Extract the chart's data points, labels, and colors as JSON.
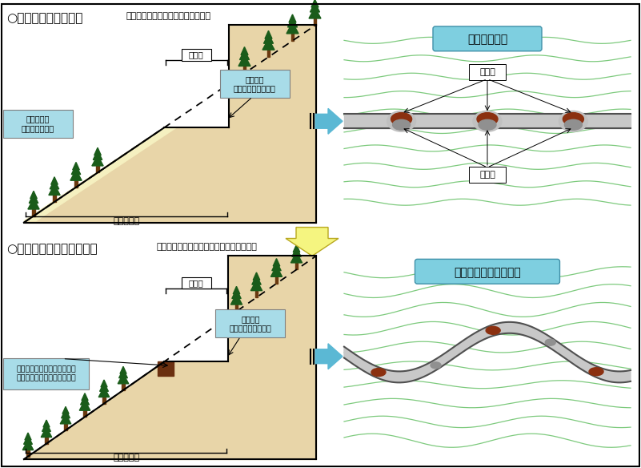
{
  "title_top": "○　これまでの作業路",
  "title_top_sub": "（土工量が大きく、雨等にも弱い）",
  "title_bottom": "○　切土高を抑えた作業路",
  "title_bottom_sub": "（土工量が少なく、安定している作業路）",
  "label_width": "幅　員",
  "label_road_width": "佐　開　幅",
  "label_high_embankment": "高い盛土高\n（雨等に弱い）",
  "label_high_cut": "高い切土\n（土工量が大きい）",
  "label_low_cut": "低い切土\n（土工量が小さい）",
  "label_reinforcement": "路側又は土羽下の構造物等に\nよる補強（丸太組構造物等）",
  "label_straight": "直線的な線形",
  "label_contour": "等高線を考慮した線形",
  "label_cut_soil": "切　土",
  "label_fill_soil": "盛　土",
  "bg_color": "#ffffff",
  "slope_fill_color": "#e8d5a8",
  "tree_trunk_color": "#6B3A10",
  "tree_color": "#1a5c1a",
  "cut_soil_color": "#8B3010",
  "fill_soil_color": "#808080",
  "contour_color": "#7dca7d",
  "road_gray_color": "#b0b0b0",
  "road_edge_color": "#505050",
  "arrow_color": "#5bb8d4",
  "arrow_down_color": "#f5f580",
  "label_box_color": "#7ecfe0",
  "annotation_box_color": "#a8dce8",
  "embankment_color": "#f5f0c0",
  "reinforce_color": "#6B3010"
}
